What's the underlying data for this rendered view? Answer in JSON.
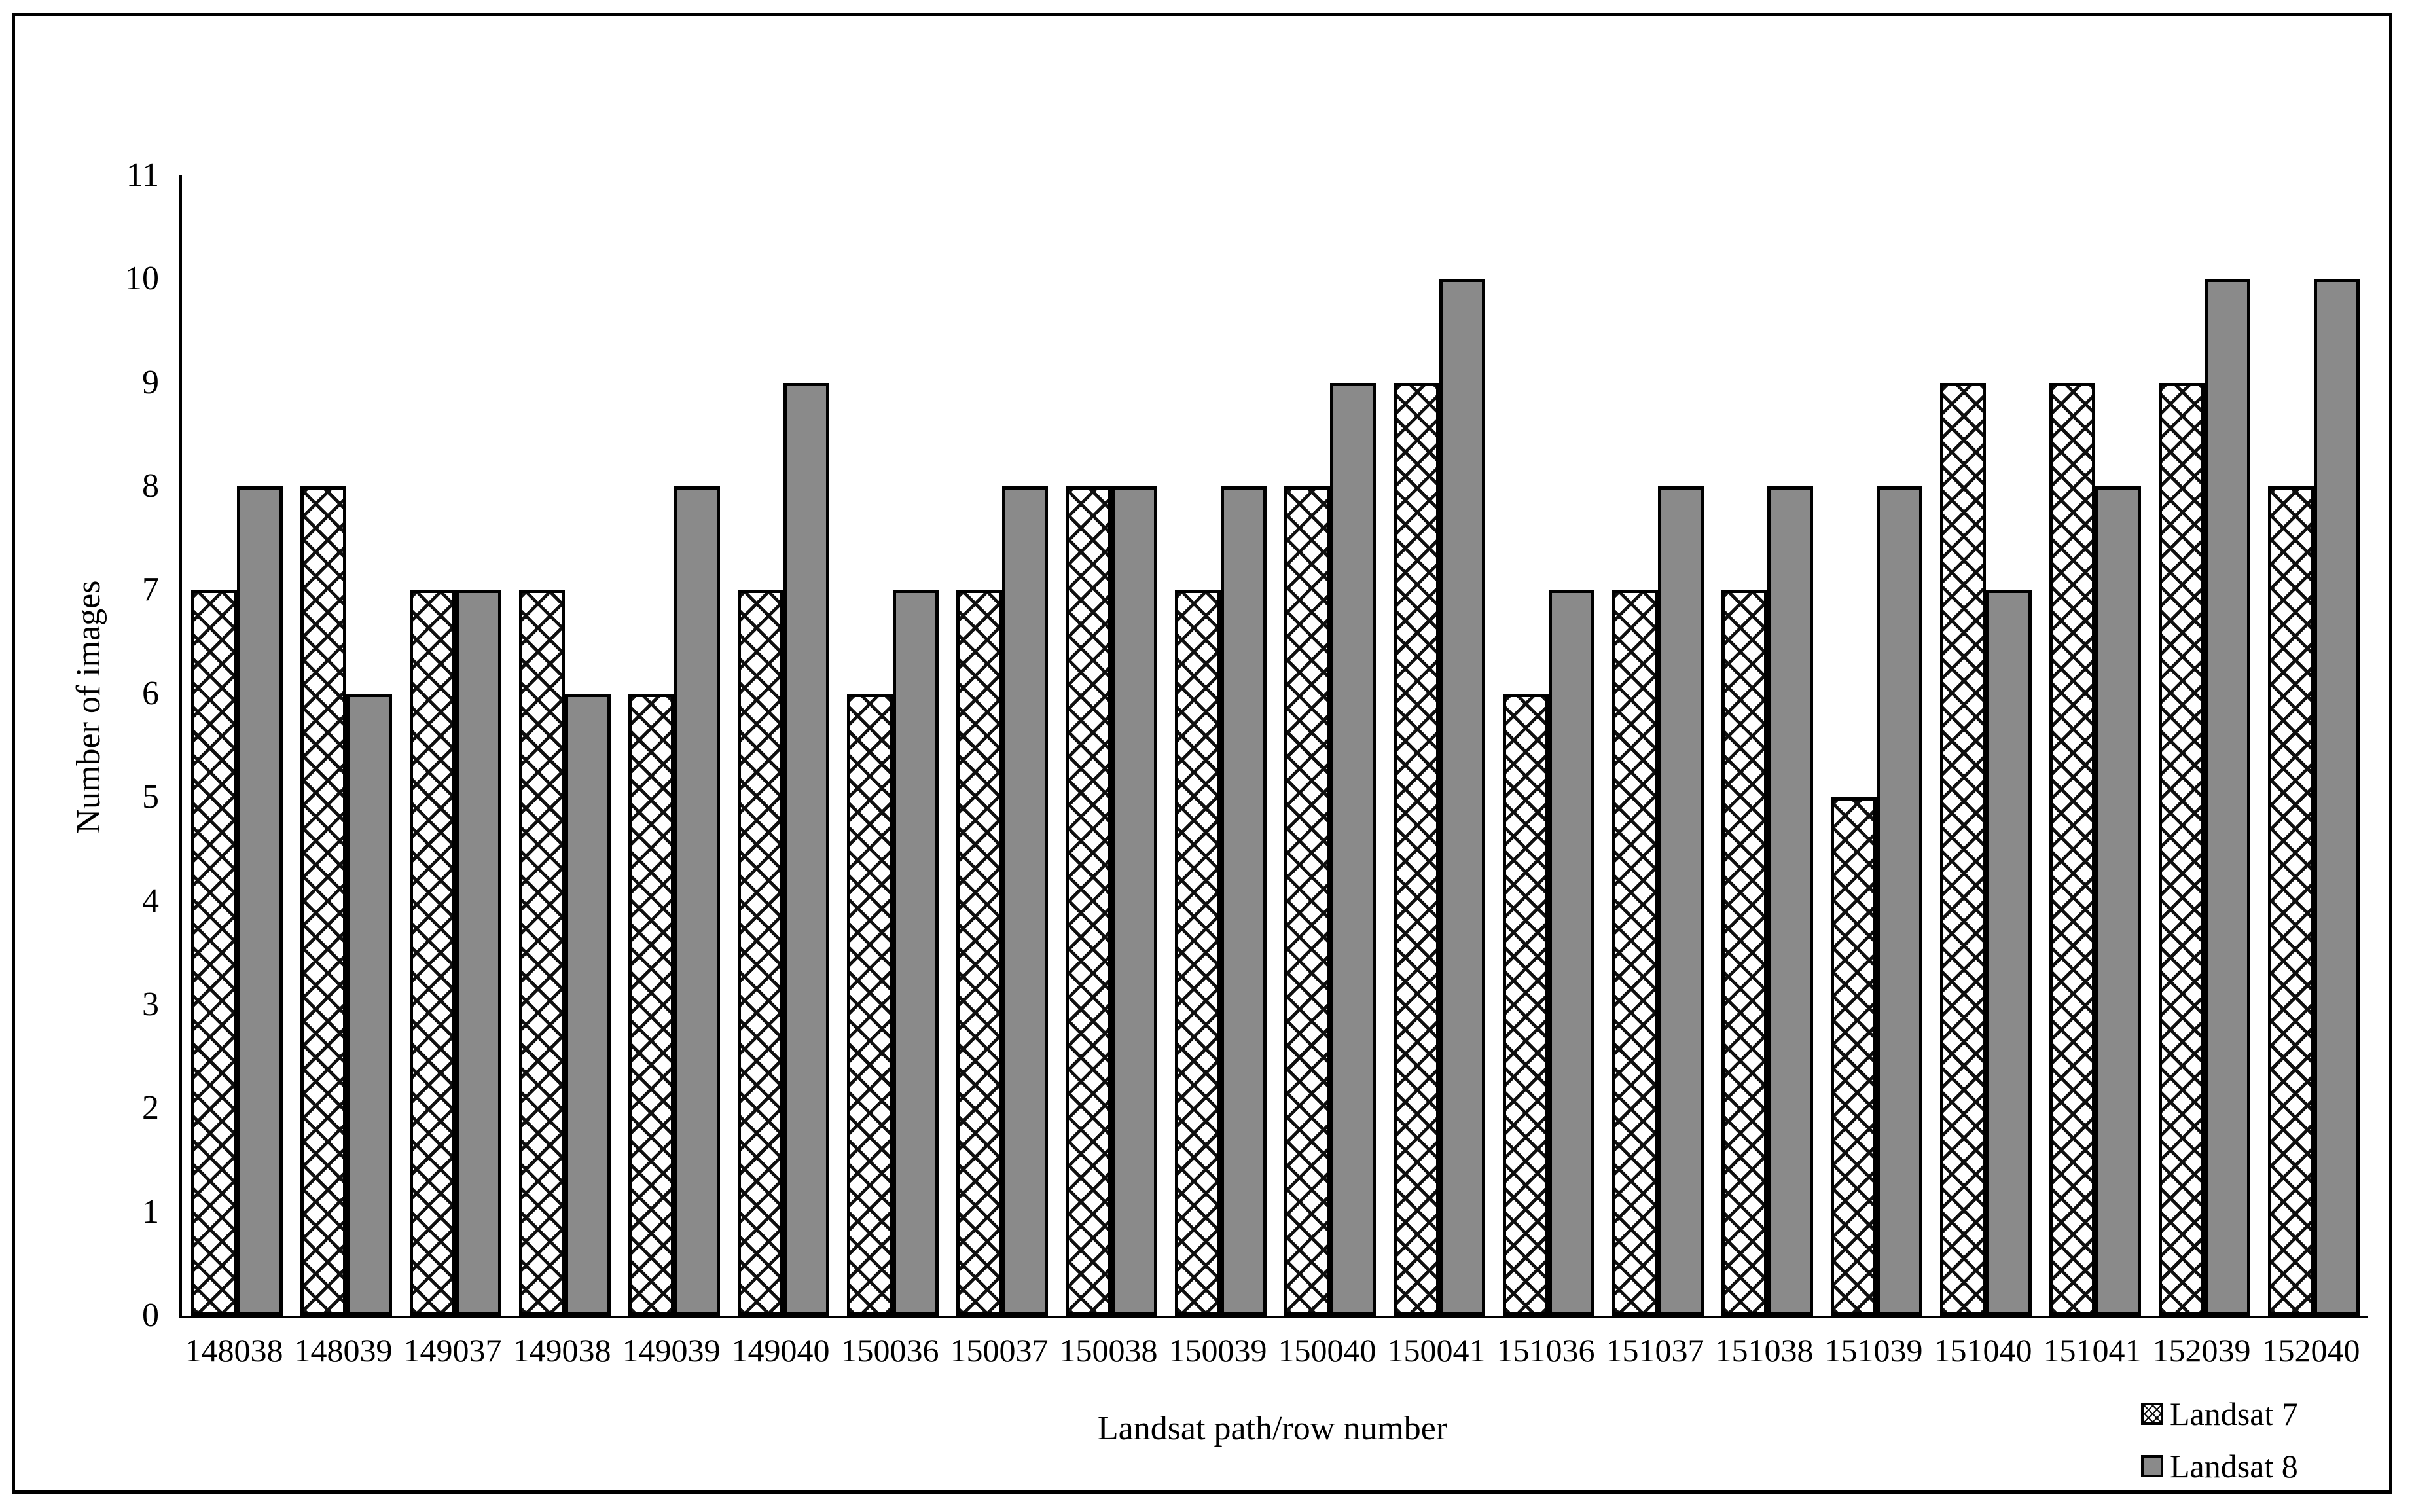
{
  "figure": {
    "background": "#ffffff",
    "frame_border_color": "#000000",
    "axis_color": "#000000"
  },
  "chart_data": {
    "type": "bar",
    "title": "",
    "xlabel": "Landsat path/row number",
    "ylabel": "Number of images",
    "ylim": [
      0,
      11
    ],
    "yticks": [
      0,
      1,
      2,
      3,
      4,
      5,
      6,
      7,
      8,
      9,
      10,
      11
    ],
    "grid": false,
    "legend_position": "bottom-right",
    "categories": [
      "148038",
      "148039",
      "149037",
      "149038",
      "149039",
      "149040",
      "150036",
      "150037",
      "150038",
      "150039",
      "150040",
      "150041",
      "151036",
      "151037",
      "151038",
      "151039",
      "151040",
      "151041",
      "152039",
      "152040"
    ],
    "series": [
      {
        "name": "Landsat 7",
        "pattern": "dotted-diamond-crosshatch",
        "fill": "#ffffff",
        "hatch_color": "#000000",
        "values": [
          7,
          8,
          7,
          7,
          6,
          7,
          6,
          7,
          8,
          7,
          8,
          9,
          6,
          7,
          7,
          5,
          9,
          9,
          9,
          8
        ]
      },
      {
        "name": "Landsat 8",
        "pattern": "solid",
        "fill": "#8a8a8a",
        "values": [
          8,
          6,
          7,
          6,
          8,
          9,
          7,
          8,
          8,
          8,
          9,
          10,
          7,
          8,
          8,
          8,
          7,
          8,
          10,
          10
        ]
      }
    ]
  }
}
